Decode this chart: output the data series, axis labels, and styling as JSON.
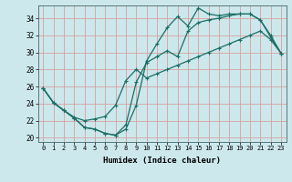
{
  "xlabel": "Humidex (Indice chaleur)",
  "bg_color": "#cce8ec",
  "grid_color": "#d8a0a0",
  "line_color": "#1a6e65",
  "xlim": [
    -0.5,
    23.5
  ],
  "ylim": [
    19.5,
    35.5
  ],
  "yticks": [
    20,
    22,
    24,
    26,
    28,
    30,
    32,
    34
  ],
  "xticks": [
    0,
    1,
    2,
    3,
    4,
    5,
    6,
    7,
    8,
    9,
    10,
    11,
    12,
    13,
    14,
    15,
    16,
    17,
    18,
    19,
    20,
    21,
    22,
    23
  ],
  "line1_x": [
    0,
    1,
    2,
    3,
    4,
    5,
    6,
    7,
    8,
    9,
    10,
    11,
    12,
    13,
    14,
    15,
    16,
    17,
    18,
    19,
    20,
    21,
    22,
    23
  ],
  "line1_y": [
    25.8,
    24.1,
    23.2,
    22.3,
    21.2,
    21.0,
    20.5,
    20.3,
    21.0,
    23.8,
    29.0,
    31.0,
    32.9,
    34.2,
    33.1,
    35.2,
    34.5,
    34.3,
    34.5,
    34.5,
    34.5,
    33.8,
    32.0,
    29.9
  ],
  "line2_x": [
    0,
    1,
    2,
    3,
    4,
    5,
    6,
    7,
    8,
    9,
    10,
    11,
    12,
    13,
    14,
    15,
    16,
    17,
    18,
    19,
    20,
    21,
    22,
    23
  ],
  "line2_y": [
    25.8,
    24.1,
    23.2,
    22.3,
    21.2,
    21.0,
    20.5,
    20.3,
    21.5,
    26.5,
    28.8,
    29.5,
    30.2,
    29.5,
    32.5,
    33.5,
    33.8,
    34.0,
    34.3,
    34.5,
    34.5,
    33.8,
    31.8,
    29.9
  ],
  "line3_x": [
    0,
    1,
    2,
    3,
    4,
    5,
    6,
    7,
    8,
    9,
    10,
    11,
    12,
    13,
    14,
    15,
    16,
    17,
    18,
    19,
    20,
    21,
    22,
    23
  ],
  "line3_y": [
    25.8,
    24.1,
    23.2,
    22.4,
    22.0,
    22.2,
    22.5,
    23.8,
    26.7,
    28.0,
    27.0,
    27.5,
    28.0,
    28.5,
    29.0,
    29.5,
    30.0,
    30.5,
    31.0,
    31.5,
    32.0,
    32.5,
    31.5,
    29.9
  ]
}
